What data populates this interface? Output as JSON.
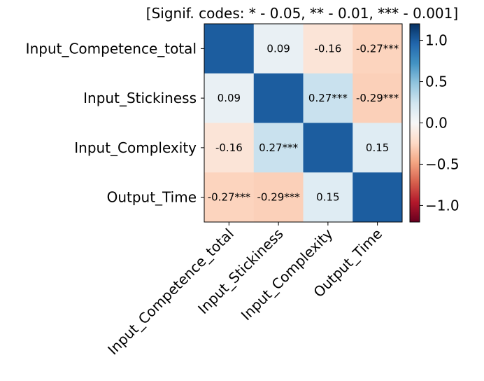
{
  "chart_data": {
    "type": "heatmap",
    "title": "[Signif. codes: * - 0.05, ** - 0.01, *** - 0.001]",
    "row_labels": [
      "Input_Competence_total",
      "Input_Stickiness",
      "Input_Complexity",
      "Output_Time"
    ],
    "col_labels": [
      "Input_Competence_total",
      "Input_Stickiness",
      "Input_Complexity",
      "Output_Time"
    ],
    "values": [
      [
        1.0,
        0.09,
        -0.16,
        -0.27
      ],
      [
        0.09,
        1.0,
        0.27,
        -0.29
      ],
      [
        -0.16,
        0.27,
        1.0,
        0.15
      ],
      [
        -0.27,
        -0.29,
        0.15,
        1.0
      ]
    ],
    "cell_labels": [
      [
        "",
        "0.09",
        "-0.16",
        "-0.27***"
      ],
      [
        "0.09",
        "",
        "0.27***",
        "-0.29***"
      ],
      [
        "-0.16",
        "0.27***",
        "",
        "0.15"
      ],
      [
        "-0.27***",
        "-0.29***",
        "0.15",
        ""
      ]
    ],
    "colormap": "RdBu",
    "colorbar": {
      "range": [
        -1.2,
        1.2
      ],
      "ticks": [
        1.0,
        0.5,
        0.0,
        -0.5,
        -1.0
      ],
      "tick_labels": [
        "1.0",
        "0.5",
        "0.0",
        "−0.5",
        "−1.0"
      ]
    },
    "xlabel": "",
    "ylabel": ""
  }
}
